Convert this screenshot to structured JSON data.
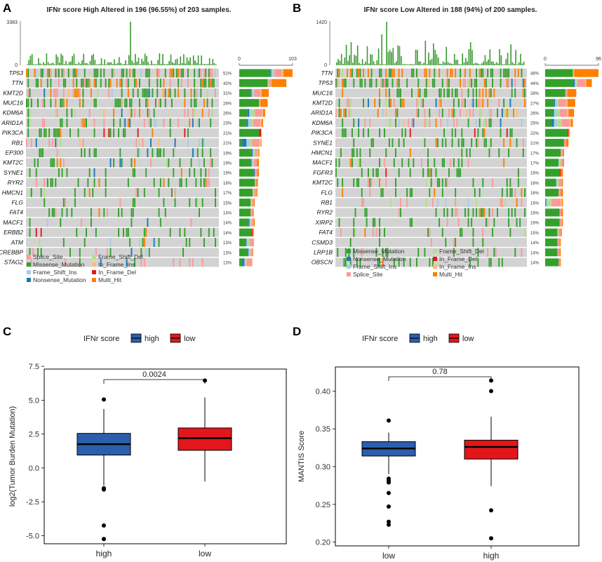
{
  "colors": {
    "Missense_Mutation": "#33a02c",
    "Nonsense_Mutation": "#1f78b4",
    "Frame_Shift_Ins": "#a6cee3",
    "Frame_Shift_Del": "#b2df8a",
    "Splice_Site": "#fb9a99",
    "In_Frame_Ins": "#fdbf6f",
    "In_Frame_Del": "#e31a1c",
    "Multi_Hit": "#ff7f00",
    "bg": "#d3d3d3",
    "tmb_bar": "#3a9a30",
    "box_high": "#2b5fad",
    "box_low": "#e3161c"
  },
  "chart_data": [
    {
      "type": "oncoplot",
      "panel": "A",
      "title": "IFNr score High Altered in 196 (96.55%) of 203 samples.",
      "tmb_axis": [
        "3383",
        "0"
      ],
      "side_axis": [
        "0",
        "103"
      ],
      "genes": [
        {
          "name": "TP53",
          "pct": "51%",
          "bar": [
            60,
            2,
            4,
            2,
            15,
            2,
            0,
            18
          ]
        },
        {
          "name": "TTN",
          "pct": "42%",
          "bar": [
            55,
            0,
            0,
            2,
            6,
            0,
            0,
            28
          ]
        },
        {
          "name": "KMT2D",
          "pct": "31%",
          "bar": [
            22,
            2,
            3,
            2,
            12,
            2,
            0,
            14
          ]
        },
        {
          "name": "MUC16",
          "pct": "28%",
          "bar": [
            38,
            0,
            0,
            0,
            3,
            0,
            0,
            14
          ]
        },
        {
          "name": "KDM6A",
          "pct": "26%",
          "bar": [
            16,
            3,
            5,
            6,
            14,
            2,
            0,
            4
          ]
        },
        {
          "name": "ARID1A",
          "pct": "23%",
          "bar": [
            14,
            3,
            6,
            4,
            14,
            2,
            0,
            3
          ]
        },
        {
          "name": "PIK3CA",
          "pct": "21%",
          "bar": [
            38,
            0,
            0,
            0,
            0,
            0,
            4,
            1
          ]
        },
        {
          "name": "RB1",
          "pct": "21%",
          "bar": [
            6,
            8,
            5,
            6,
            14,
            3,
            0,
            1
          ]
        },
        {
          "name": "EP300",
          "pct": "19%",
          "bar": [
            24,
            2,
            2,
            2,
            5,
            2,
            0,
            2
          ]
        },
        {
          "name": "KMT2C",
          "pct": "19%",
          "bar": [
            22,
            2,
            2,
            2,
            6,
            0,
            0,
            4
          ]
        },
        {
          "name": "SYNE1",
          "pct": "19%",
          "bar": [
            28,
            2,
            0,
            0,
            5,
            0,
            0,
            3
          ]
        },
        {
          "name": "RYR2",
          "pct": "18%",
          "bar": [
            30,
            0,
            0,
            0,
            3,
            0,
            0,
            3
          ]
        },
        {
          "name": "HMCN1",
          "pct": "17%",
          "bar": [
            26,
            0,
            0,
            2,
            5,
            0,
            0,
            2
          ]
        },
        {
          "name": "FLG",
          "pct": "15%",
          "bar": [
            22,
            0,
            0,
            2,
            4,
            0,
            0,
            2
          ]
        },
        {
          "name": "FAT4",
          "pct": "14%",
          "bar": [
            22,
            0,
            0,
            0,
            4,
            0,
            0,
            2
          ]
        },
        {
          "name": "MACF1",
          "pct": "14%",
          "bar": [
            18,
            2,
            2,
            2,
            4,
            0,
            0,
            2
          ]
        },
        {
          "name": "ERBB2",
          "pct": "14%",
          "bar": [
            24,
            0,
            0,
            0,
            0,
            0,
            2,
            2
          ]
        },
        {
          "name": "ATM",
          "pct": "13%",
          "bar": [
            12,
            2,
            3,
            4,
            6,
            0,
            0,
            1
          ]
        },
        {
          "name": "CREBBP",
          "pct": "13%",
          "bar": [
            16,
            2,
            2,
            2,
            4,
            0,
            0,
            1
          ]
        },
        {
          "name": "STAG2",
          "pct": "13%",
          "bar": [
            6,
            4,
            2,
            2,
            10,
            0,
            0,
            1
          ]
        }
      ],
      "legend": [
        [
          "Splice_Site",
          "Frame_Shift_Del"
        ],
        [
          "Missense_Mutation",
          "In_Frame_Ins"
        ],
        [
          "Frame_Shift_Ins",
          "In_Frame_Del"
        ],
        [
          "Nonsense_Mutation",
          "Multi_Hit"
        ]
      ]
    },
    {
      "type": "oncoplot",
      "panel": "B",
      "title": "IFNr score Low Altered in 188 (94%) of 200 samples.",
      "tmb_axis": [
        "1420",
        "0"
      ],
      "side_axis": [
        "0",
        "96"
      ],
      "genes": [
        {
          "name": "TTN",
          "pct": "48%",
          "bar": [
            50,
            0,
            0,
            2,
            0,
            0,
            0,
            44
          ]
        },
        {
          "name": "TP53",
          "pct": "44%",
          "bar": [
            50,
            3,
            3,
            2,
            14,
            2,
            0,
            10
          ]
        },
        {
          "name": "MUC16",
          "pct": "28%",
          "bar": [
            36,
            0,
            0,
            0,
            4,
            0,
            0,
            16
          ]
        },
        {
          "name": "KMT2D",
          "pct": "27%",
          "bar": [
            16,
            2,
            4,
            2,
            14,
            2,
            0,
            14
          ]
        },
        {
          "name": "ARID1A",
          "pct": "26%",
          "bar": [
            14,
            2,
            6,
            4,
            14,
            2,
            0,
            10
          ]
        },
        {
          "name": "KDM6A",
          "pct": "25%",
          "bar": [
            12,
            4,
            6,
            8,
            14,
            2,
            0,
            4
          ]
        },
        {
          "name": "PIK3CA",
          "pct": "22%",
          "bar": [
            40,
            0,
            0,
            0,
            0,
            0,
            2,
            2
          ]
        },
        {
          "name": "SYNE1",
          "pct": "21%",
          "bar": [
            34,
            0,
            0,
            0,
            4,
            0,
            0,
            4
          ]
        },
        {
          "name": "HMCN1",
          "pct": "17%",
          "bar": [
            28,
            0,
            0,
            0,
            4,
            0,
            0,
            2
          ]
        },
        {
          "name": "MACF1",
          "pct": "17%",
          "bar": [
            24,
            0,
            2,
            2,
            4,
            0,
            0,
            2
          ]
        },
        {
          "name": "FGFR3",
          "pct": "16%",
          "bar": [
            26,
            0,
            0,
            0,
            0,
            0,
            2,
            4
          ]
        },
        {
          "name": "KMT2C",
          "pct": "16%",
          "bar": [
            20,
            0,
            2,
            2,
            6,
            0,
            0,
            2
          ]
        },
        {
          "name": "FLG",
          "pct": "16%",
          "bar": [
            24,
            0,
            0,
            0,
            4,
            0,
            0,
            4
          ]
        },
        {
          "name": "RB1",
          "pct": "16%",
          "bar": [
            2,
            0,
            4,
            6,
            16,
            2,
            0,
            2
          ]
        },
        {
          "name": "RYR2",
          "pct": "16%",
          "bar": [
            26,
            0,
            0,
            0,
            3,
            0,
            0,
            3
          ]
        },
        {
          "name": "XIRP2",
          "pct": "16%",
          "bar": [
            26,
            0,
            0,
            0,
            4,
            0,
            0,
            2
          ]
        },
        {
          "name": "FAT4",
          "pct": "15%",
          "bar": [
            22,
            0,
            0,
            2,
            4,
            0,
            0,
            2
          ]
        },
        {
          "name": "CSMD3",
          "pct": "14%",
          "bar": [
            22,
            0,
            0,
            0,
            4,
            0,
            0,
            2
          ]
        },
        {
          "name": "LRP1B",
          "pct": "14%",
          "bar": [
            22,
            0,
            0,
            0,
            4,
            0,
            0,
            2
          ]
        },
        {
          "name": "OBSCN",
          "pct": "14%",
          "bar": [
            24,
            0,
            0,
            0,
            2,
            0,
            0,
            2
          ]
        }
      ],
      "legend": [
        [
          "Missense_Mutation",
          "Frame_Shift_Del"
        ],
        [
          "Nonsense_Mutation",
          "In_Frame_Del"
        ],
        [
          "Frame_Shift_Ins",
          "In_Frame_Ins"
        ],
        [
          "Splice_Site",
          "Multi_Hit"
        ]
      ]
    },
    {
      "type": "boxplot",
      "panel": "C",
      "legend_title": "IFNr score",
      "legend_labels": [
        "high",
        "low"
      ],
      "ylabel": "log2(Tumor Burden Mutation)",
      "ylim": [
        -5.6,
        7.3
      ],
      "yticks": [
        -5.0,
        -2.5,
        0.0,
        2.5,
        5.0,
        7.5
      ],
      "ytick_labels": [
        "-5.0",
        "-2.5",
        "0.0",
        "2.5",
        "5.0",
        "7.5"
      ],
      "categories": [
        "high",
        "low"
      ],
      "pvalue": "0.0024",
      "groups": [
        {
          "label": "high",
          "color_key": "box_high",
          "q1": 0.95,
          "median": 1.75,
          "q3": 2.55,
          "whisker_lo": -1.3,
          "whisker_hi": 4.35,
          "outliers": [
            5.05,
            -1.5,
            -1.6,
            -4.25,
            -5.25
          ]
        },
        {
          "label": "low",
          "color_key": "box_low",
          "q1": 1.3,
          "median": 2.2,
          "q3": 2.95,
          "whisker_lo": -1.0,
          "whisker_hi": 5.2,
          "outliers": [
            6.45
          ]
        }
      ]
    },
    {
      "type": "boxplot",
      "panel": "D",
      "legend_title": "IFNr score",
      "legend_labels": [
        "high",
        "low"
      ],
      "ylabel": "MANTIS Score",
      "ylim": [
        0.195,
        0.432
      ],
      "yticks": [
        0.2,
        0.25,
        0.3,
        0.35,
        0.4
      ],
      "ytick_labels": [
        "0.20",
        "0.25",
        "0.30",
        "0.35",
        "0.40"
      ],
      "categories": [
        "low",
        "high"
      ],
      "pvalue": "0.78",
      "groups": [
        {
          "label": "low",
          "color_key": "box_high",
          "q1": 0.314,
          "median": 0.324,
          "q3": 0.333,
          "whisker_lo": 0.29,
          "whisker_hi": 0.345,
          "outliers": [
            0.361,
            0.284,
            0.281,
            0.279,
            0.265,
            0.247,
            0.227,
            0.223
          ]
        },
        {
          "label": "high",
          "color_key": "box_low",
          "q1": 0.31,
          "median": 0.326,
          "q3": 0.335,
          "whisker_lo": 0.274,
          "whisker_hi": 0.366,
          "outliers": [
            0.414,
            0.4,
            0.242,
            0.205
          ]
        }
      ]
    }
  ]
}
